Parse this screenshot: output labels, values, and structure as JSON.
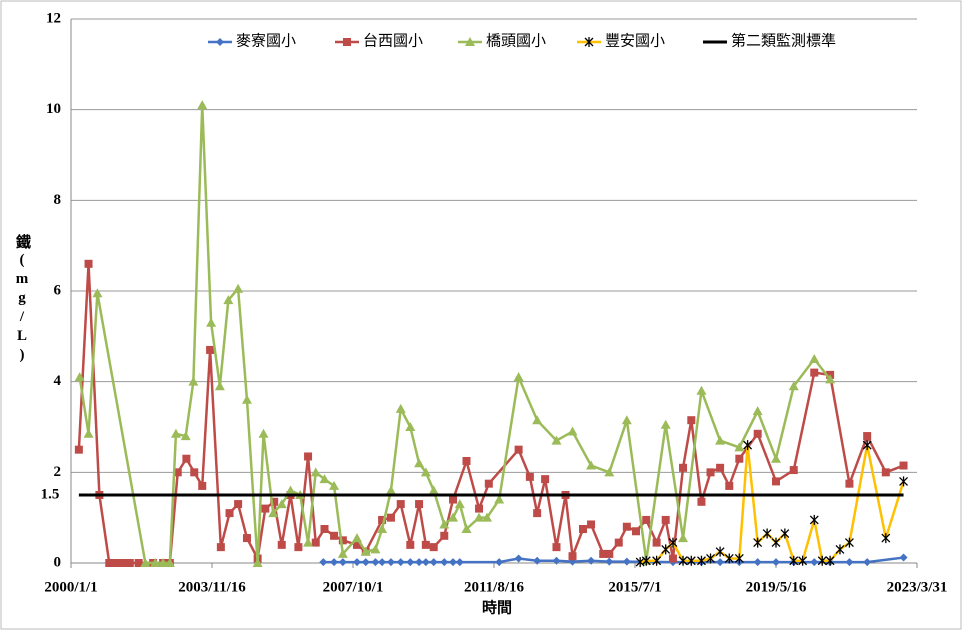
{
  "chart_data": {
    "type": "line",
    "x_label": "時間",
    "y_label": "鐵(mg/L)",
    "xlim": [
      "2000/1/1",
      "2023/3/31"
    ],
    "xticks": [
      "2000/1/1",
      "2003/11/16",
      "2007/10/1",
      "2011/8/16",
      "2015/7/1",
      "2019/5/16",
      "2023/3/31"
    ],
    "ylim": [
      0,
      12
    ],
    "yticks": [
      0,
      2,
      4,
      6,
      8,
      10,
      12
    ],
    "grid": true,
    "legend": "top",
    "standard_label": 1.5,
    "series": [
      {
        "name": "麥寮國小",
        "color": "#4472c4",
        "marker": "diamond",
        "x": [
          "2006/12/7",
          "2007/3/25",
          "2007/6/21",
          "2007/11/10",
          "2008/2/6",
          "2008/5/13",
          "2008/7/19",
          "2008/10/16",
          "2009/1/22",
          "2009/4/28",
          "2009/7/25",
          "2009/10/1",
          "2009/12/19",
          "2010/4/4",
          "2010/7/1",
          "2010/9/7",
          "2011/10/7",
          "2012/4/19",
          "2012/10/22",
          "2013/5/4",
          "2013/10/12",
          "2014/4/16",
          "2014/10/16",
          "2015/4/10",
          "2016/7/16",
          "2017/4/28",
          "2017/11/1",
          "2018/5/13",
          "2018/11/13",
          "2019/5/16",
          "2019/11/10",
          "2020/6/3",
          "2020/11/9",
          "2021/5/22",
          "2021/11/16",
          "2022/11/16"
        ],
        "values": [
          0.02,
          0.02,
          0.02,
          0.02,
          0.02,
          0.02,
          0.02,
          0.02,
          0.02,
          0.02,
          0.02,
          0.02,
          0.02,
          0.02,
          0.02,
          0.02,
          0.02,
          0.1,
          0.05,
          0.05,
          0.03,
          0.05,
          0.03,
          0.03,
          0.02,
          0.02,
          0.02,
          0.02,
          0.02,
          0.02,
          0.02,
          0.02,
          0.02,
          0.02,
          0.02,
          0.12
        ]
      },
      {
        "name": "台西國小",
        "color": "#be4b48",
        "marker": "square",
        "x": [
          "2000/3/20",
          "2000/6/25",
          "2000/10/12",
          "2001/1/19",
          "2001/3/28",
          "2001/6/4",
          "2001/8/13",
          "2001/11/10",
          "2002/4/4",
          "2002/7/13",
          "2002/9/19",
          "2002/12/7",
          "2003/3/4",
          "2003/5/22",
          "2003/8/10",
          "2003/10/28",
          "2004/2/13",
          "2004/5/10",
          "2004/8/4",
          "2004/11/1",
          "2005/2/16",
          "2005/5/4",
          "2005/8/1",
          "2005/10/16",
          "2006/1/12",
          "2006/4/1",
          "2006/7/7",
          "2006/9/22",
          "2006/12/19",
          "2007/3/25",
          "2007/6/21",
          "2007/11/10",
          "2008/2/6",
          "2008/7/19",
          "2008/10/16",
          "2009/1/22",
          "2009/4/28",
          "2009/7/25",
          "2009/10/1",
          "2009/12/19",
          "2010/4/4",
          "2010/7/1",
          "2010/11/13",
          "2011/3/19",
          "2011/6/25",
          "2012/4/19",
          "2012/8/10",
          "2012/10/22",
          "2013/1/10",
          "2013/5/4",
          "2013/8/3",
          "2013/10/12",
          "2014/1/25",
          "2014/4/16",
          "2014/8/16",
          "2014/10/16",
          "2015/1/19",
          "2015/4/10",
          "2015/7/11",
          "2015/10/22",
          "2016/2/3",
          "2016/5/4",
          "2016/7/16",
          "2016/10/25",
          "2017/1/16",
          "2017/4/28",
          "2017/7/28",
          "2017/11/1",
          "2018/2/1",
          "2018/5/13",
          "2018/11/13",
          "2019/5/16",
          "2019/11/10",
          "2020/6/3",
          "2020/11/9",
          "2021/5/22",
          "2021/11/16",
          "2022/5/22",
          "2022/11/16"
        ],
        "values": [
          2.5,
          6.6,
          1.5,
          0,
          0,
          0,
          0,
          0,
          0,
          0,
          0,
          2.0,
          2.3,
          2.0,
          1.7,
          4.7,
          0.35,
          1.1,
          1.3,
          0.55,
          0.1,
          1.2,
          1.35,
          0.4,
          1.5,
          0.35,
          2.35,
          0.45,
          0.75,
          0.6,
          0.5,
          0.4,
          0.25,
          0.95,
          1.0,
          1.3,
          0.4,
          1.3,
          0.4,
          0.35,
          0.6,
          1.4,
          2.25,
          1.2,
          1.75,
          2.5,
          1.9,
          1.1,
          1.85,
          0.35,
          1.5,
          0.15,
          0.75,
          0.85,
          0.2,
          0.2,
          0.45,
          0.8,
          0.7,
          0.95,
          0.45,
          0.95,
          0.1,
          2.1,
          3.15,
          1.35,
          2.0,
          2.1,
          1.7,
          2.3,
          2.85,
          1.8,
          2.05,
          4.2,
          4.15,
          1.75,
          2.8,
          2.0,
          2.15
        ]
      },
      {
        "name": "橋頭國小",
        "color": "#9bbb59",
        "marker": "triangle",
        "x": [
          "2000/3/28",
          "2000/6/25",
          "2000/9/22",
          "2002/1/16",
          "2002/4/25",
          "2002/7/13",
          "2002/9/19",
          "2002/11/19",
          "2003/2/25",
          "2003/5/13",
          "2003/8/10",
          "2003/11/7",
          "2004/2/3",
          "2004/4/28",
          "2004/8/4",
          "2004/11/1",
          "2005/2/16",
          "2005/4/16",
          "2005/7/22",
          "2005/10/16",
          "2006/1/12",
          "2006/4/19",
          "2006/7/7",
          "2006/9/22",
          "2006/12/19",
          "2007/3/25",
          "2007/6/21",
          "2007/11/10",
          "2008/2/6",
          "2008/5/13",
          "2008/7/19",
          "2008/10/16",
          "2009/1/22",
          "2009/4/28",
          "2009/7/25",
          "2009/10/1",
          "2009/12/19",
          "2010/4/4",
          "2010/7/1",
          "2010/9/7",
          "2010/11/13",
          "2011/3/19",
          "2011/6/7",
          "2011/10/7",
          "2012/4/19",
          "2012/10/22",
          "2013/5/4",
          "2013/10/12",
          "2014/4/16",
          "2014/10/16",
          "2015/4/10",
          "2015/10/22",
          "2016/5/4",
          "2016/10/25",
          "2017/4/28",
          "2017/11/1",
          "2018/5/13",
          "2018/11/13",
          "2019/5/16",
          "2019/11/10",
          "2020/6/3",
          "2020/11/9"
        ],
        "values": [
          4.1,
          2.85,
          5.95,
          0,
          0,
          0,
          0,
          2.85,
          2.8,
          4.0,
          10.1,
          5.3,
          3.9,
          5.8,
          6.05,
          3.6,
          0,
          2.85,
          1.1,
          1.3,
          1.6,
          1.5,
          0.45,
          2.0,
          1.85,
          1.7,
          0.2,
          0.55,
          0.25,
          0.3,
          0.75,
          1.6,
          3.4,
          3.0,
          2.2,
          2.0,
          1.6,
          0.85,
          1.0,
          1.3,
          0.75,
          1.0,
          1.0,
          1.4,
          4.1,
          3.15,
          2.7,
          2.9,
          2.15,
          2.0,
          3.15,
          0.05,
          3.05,
          0.55,
          3.8,
          2.7,
          2.55,
          3.35,
          2.3,
          3.9,
          4.5,
          4.05
        ]
      },
      {
        "name": "豐安國小",
        "color": "#ffc000",
        "marker": "star",
        "x": [
          "2015/8/22",
          "2015/10/22",
          "2016/2/3",
          "2016/5/4",
          "2016/7/16",
          "2016/10/25",
          "2017/1/16",
          "2017/4/28",
          "2017/7/28",
          "2017/11/1",
          "2018/2/1",
          "2018/5/13",
          "2018/8/4",
          "2018/11/13",
          "2019/2/16",
          "2019/5/16",
          "2019/8/13",
          "2019/11/10",
          "2020/2/7",
          "2020/6/3",
          "2020/8/22",
          "2020/11/9",
          "2021/2/16",
          "2021/5/22",
          "2021/11/16",
          "2022/5/22",
          "2022/11/16"
        ],
        "values": [
          0.02,
          0.05,
          0.05,
          0.3,
          0.45,
          0.05,
          0.05,
          0.05,
          0.1,
          0.25,
          0.1,
          0.1,
          2.6,
          0.45,
          0.65,
          0.45,
          0.65,
          0.05,
          0.05,
          0.95,
          0.05,
          0.05,
          0.3,
          0.45,
          2.6,
          0.55,
          1.8
        ]
      },
      {
        "name": "第二類監測標準",
        "color": "#000000",
        "marker": "none",
        "x": [
          "2000/3/20",
          "2022/11/16"
        ],
        "values": [
          1.5,
          1.5
        ]
      }
    ]
  }
}
